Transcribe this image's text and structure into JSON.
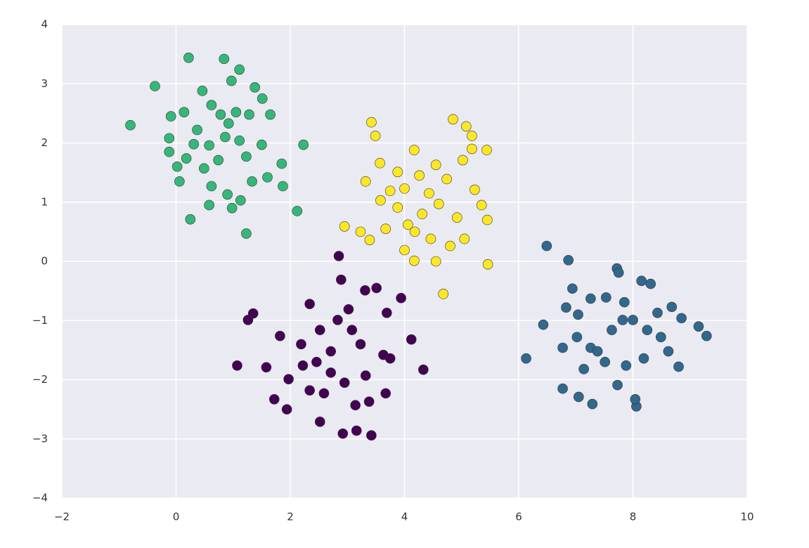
{
  "chart_data": {
    "type": "scatter",
    "grid": true,
    "xlim": [
      -2,
      10
    ],
    "ylim": [
      -4,
      4
    ],
    "xticks": [
      {
        "value": -2,
        "label": "−2"
      },
      0,
      2,
      4,
      6,
      8,
      10
    ],
    "yticks": [
      {
        "value": -4,
        "label": "−4"
      },
      {
        "value": -3,
        "label": "−3"
      },
      {
        "value": -2,
        "label": "−2"
      },
      {
        "value": -1,
        "label": "−1"
      },
      0,
      1,
      2,
      3,
      4
    ],
    "series": [
      {
        "color": "#35b779",
        "x": [
          -0.8,
          -0.37,
          0.22,
          0.84,
          1.11,
          0.97,
          0.46,
          0.14,
          -0.09,
          -0.12,
          -0.12,
          0.02,
          0.06,
          0.25,
          0.58,
          0.9,
          0.98,
          1.23,
          1.13,
          1.33,
          1.6,
          1.87,
          2.12,
          2.23,
          1.85,
          1.5,
          1.65,
          1.38,
          1.51,
          1.28,
          0.62,
          0.78,
          0.92,
          0.37,
          0.58,
          0.74,
          0.49,
          0.18,
          1.11,
          1.23,
          1.05,
          0.62,
          0.86,
          0.31
        ],
        "values": [
          2.3,
          2.96,
          3.44,
          3.42,
          3.24,
          3.05,
          2.88,
          2.52,
          2.45,
          2.08,
          1.85,
          1.6,
          1.35,
          0.71,
          0.95,
          1.13,
          0.9,
          0.47,
          1.03,
          1.35,
          1.42,
          1.27,
          0.85,
          1.97,
          1.65,
          1.97,
          2.48,
          2.94,
          2.75,
          2.48,
          2.64,
          2.48,
          2.33,
          2.22,
          1.96,
          1.71,
          1.57,
          1.74,
          2.04,
          1.77,
          2.52,
          1.27,
          2.1,
          1.98
        ]
      },
      {
        "color": "#fde725",
        "x": [
          3.42,
          3.49,
          2.95,
          3.23,
          3.39,
          3.32,
          3.57,
          3.88,
          4.17,
          4.85,
          5.08,
          5.18,
          5.44,
          5.18,
          5.02,
          5.35,
          5.45,
          5.46,
          4.68,
          4.17,
          4.0,
          3.67,
          3.58,
          3.88,
          4.06,
          4.31,
          4.43,
          4.6,
          4.74,
          4.92,
          5.05,
          4.8,
          4.46,
          4.26,
          4.0,
          3.75,
          4.55,
          5.23,
          4.55,
          4.18
        ],
        "values": [
          2.35,
          2.12,
          0.59,
          0.5,
          0.36,
          1.35,
          1.66,
          1.51,
          1.88,
          2.4,
          2.28,
          2.12,
          1.88,
          1.9,
          1.71,
          0.95,
          0.7,
          -0.05,
          -0.55,
          0.01,
          0.19,
          0.55,
          1.03,
          0.91,
          0.62,
          0.8,
          1.15,
          0.97,
          1.39,
          0.74,
          0.38,
          0.26,
          0.38,
          1.45,
          1.23,
          1.19,
          1.63,
          1.21,
          0.0,
          0.5
        ]
      },
      {
        "color": "#440154",
        "x": [
          2.85,
          2.89,
          1.35,
          1.26,
          1.07,
          1.58,
          1.72,
          1.94,
          2.34,
          2.52,
          2.92,
          3.16,
          3.42,
          3.38,
          3.14,
          3.67,
          4.33,
          4.12,
          3.94,
          3.51,
          3.31,
          3.69,
          2.34,
          1.82,
          2.19,
          2.52,
          2.83,
          3.08,
          3.23,
          2.71,
          2.46,
          2.22,
          2.71,
          2.95,
          3.32,
          3.63,
          2.59,
          1.97,
          3.02,
          3.75
        ],
        "values": [
          0.09,
          -0.31,
          -0.88,
          -0.99,
          -1.76,
          -1.79,
          -2.33,
          -2.5,
          -2.18,
          -2.71,
          -2.91,
          -2.86,
          -2.94,
          -2.37,
          -2.43,
          -2.23,
          -1.83,
          -1.32,
          -0.62,
          -0.45,
          -0.49,
          -0.87,
          -0.72,
          -1.26,
          -1.4,
          -1.16,
          -0.99,
          -1.16,
          -1.4,
          -1.52,
          -1.7,
          -1.76,
          -1.88,
          -2.05,
          -1.93,
          -1.58,
          -2.23,
          -1.99,
          -0.81,
          -1.64
        ]
      },
      {
        "color": "#31688e",
        "x": [
          6.49,
          6.87,
          6.13,
          6.43,
          6.77,
          7.05,
          7.29,
          8.06,
          8.04,
          7.73,
          8.8,
          9.15,
          9.29,
          8.85,
          8.68,
          8.31,
          8.15,
          7.72,
          7.75,
          6.94,
          6.83,
          7.04,
          7.26,
          7.53,
          7.85,
          8.0,
          8.25,
          8.49,
          8.62,
          8.19,
          7.88,
          7.51,
          7.26,
          7.02,
          6.77,
          7.63,
          7.82,
          7.14,
          7.38,
          8.43
        ],
        "values": [
          0.26,
          0.02,
          -1.64,
          -1.07,
          -2.15,
          -2.29,
          -2.41,
          -2.45,
          -2.33,
          -2.09,
          -1.78,
          -1.1,
          -1.26,
          -0.96,
          -0.77,
          -0.38,
          -0.33,
          -0.12,
          -0.19,
          -0.46,
          -0.78,
          -0.9,
          -0.63,
          -0.61,
          -0.69,
          -0.99,
          -1.16,
          -1.28,
          -1.52,
          -1.64,
          -1.76,
          -1.7,
          -1.46,
          -1.28,
          -1.46,
          -1.16,
          -0.99,
          -1.82,
          -1.52,
          -0.87
        ]
      }
    ]
  }
}
